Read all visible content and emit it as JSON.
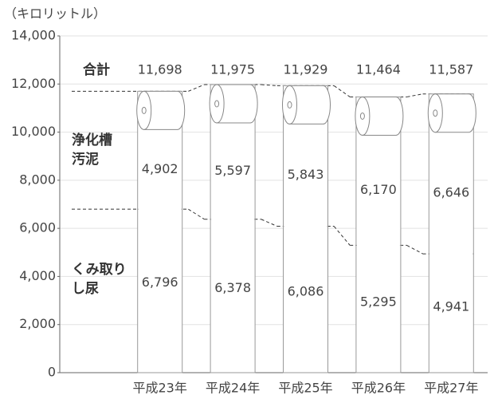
{
  "chart_data": {
    "type": "roll-bar",
    "unit_label": "（キロリットル）",
    "categories": [
      "平成23年",
      "平成24年",
      "平成25年",
      "平成26年",
      "平成27年"
    ],
    "series": [
      {
        "name": "くみ取りし尿",
        "values": [
          6796,
          6378,
          6086,
          5295,
          4941
        ],
        "value_labels": [
          "6,796",
          "6,378",
          "6,086",
          "5,295",
          "4,941"
        ]
      },
      {
        "name": "浄化槽汚泥",
        "values": [
          4902,
          5597,
          5843,
          6170,
          6646
        ],
        "value_labels": [
          "4,902",
          "5,597",
          "5,843",
          "6,170",
          "6,646"
        ]
      }
    ],
    "totals": {
      "name": "合計",
      "values": [
        11698,
        11975,
        11929,
        11464,
        11587
      ],
      "value_labels": [
        "11,698",
        "11,975",
        "11,929",
        "11,464",
        "11,587"
      ]
    },
    "ylim": [
      0,
      14000
    ],
    "yticks": [
      0,
      {
        "value": 2000,
        "label": "2,000"
      },
      {
        "value": 4000,
        "label": "4,000"
      },
      {
        "value": 6000,
        "label": "6,000"
      },
      {
        "value": 8000,
        "label": "8,000"
      },
      {
        "value": 10000,
        "label": "10,000"
      },
      {
        "value": 12000,
        "label": "12,000"
      },
      {
        "value": 14000,
        "label": "14,000"
      }
    ],
    "grid": true
  }
}
